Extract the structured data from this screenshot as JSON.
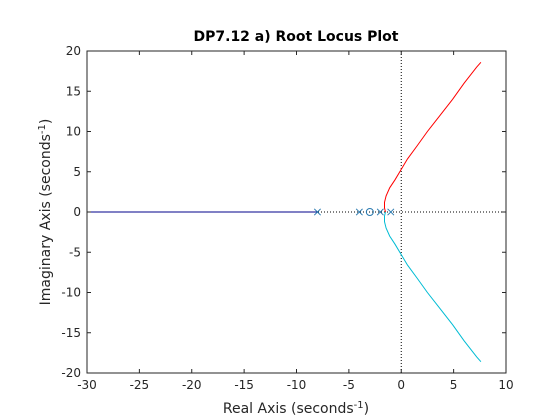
{
  "chart_data": {
    "type": "line",
    "title": "DP7.12 a) Root Locus Plot",
    "xlabel": {
      "text": "Real Axis (seconds",
      "sup": "-1",
      "close": ")"
    },
    "ylabel": {
      "text": "Imaginary Axis (seconds",
      "sup": "-1",
      "close": ")"
    },
    "xlim": [
      -30,
      10
    ],
    "ylim": [
      -20,
      20
    ],
    "xticks": [
      -30,
      -25,
      -20,
      -15,
      -10,
      -5,
      0,
      5,
      10
    ],
    "yticks": [
      -20,
      -15,
      -10,
      -5,
      0,
      5,
      10,
      15,
      20
    ],
    "xtick_labels": [
      "-30",
      "-25",
      "-20",
      "-15",
      "-10",
      "-5",
      "0",
      "5",
      "10"
    ],
    "ytick_labels": [
      "-20",
      "-15",
      "-10",
      "-5",
      "0",
      "5",
      "10",
      "15",
      "20"
    ],
    "grid": false,
    "series": [
      {
        "color": "#00008b",
        "points": [
          [
            -8,
            0
          ],
          [
            -30,
            0
          ]
        ]
      },
      {
        "color": "#ff0000",
        "points": [
          [
            -1.5,
            0
          ],
          [
            -1.6,
            0.5
          ],
          [
            -1.6,
            1.2
          ],
          [
            -1.45,
            2
          ],
          [
            -1.1,
            3
          ],
          [
            -0.6,
            4
          ],
          [
            0,
            5.3
          ],
          [
            0.6,
            6.6
          ],
          [
            1.5,
            8.2
          ],
          [
            2.5,
            10
          ],
          [
            3.7,
            12
          ],
          [
            4.9,
            14
          ],
          [
            6.0,
            16
          ],
          [
            7.2,
            18
          ],
          [
            7.6,
            18.6
          ]
        ]
      },
      {
        "color": "#00bcd4",
        "points": [
          [
            -1.5,
            0
          ],
          [
            -1.6,
            -0.5
          ],
          [
            -1.6,
            -1.2
          ],
          [
            -1.45,
            -2
          ],
          [
            -1.1,
            -3
          ],
          [
            -0.6,
            -4
          ],
          [
            0,
            -5.3
          ],
          [
            0.6,
            -6.6
          ],
          [
            1.5,
            -8.2
          ],
          [
            2.5,
            -10
          ],
          [
            3.7,
            -12
          ],
          [
            4.9,
            -14
          ],
          [
            6.0,
            -16
          ],
          [
            7.2,
            -18
          ],
          [
            7.6,
            -18.6
          ]
        ]
      }
    ],
    "poles": [
      [
        -8,
        0
      ],
      [
        -4,
        0
      ],
      [
        -2,
        0
      ],
      [
        -1,
        0
      ]
    ],
    "zeros": [
      [
        -3,
        0
      ]
    ],
    "marker_color": "#2a7ab0",
    "reference_lines": {
      "x": 0,
      "y": 0,
      "style": "dotted"
    }
  }
}
